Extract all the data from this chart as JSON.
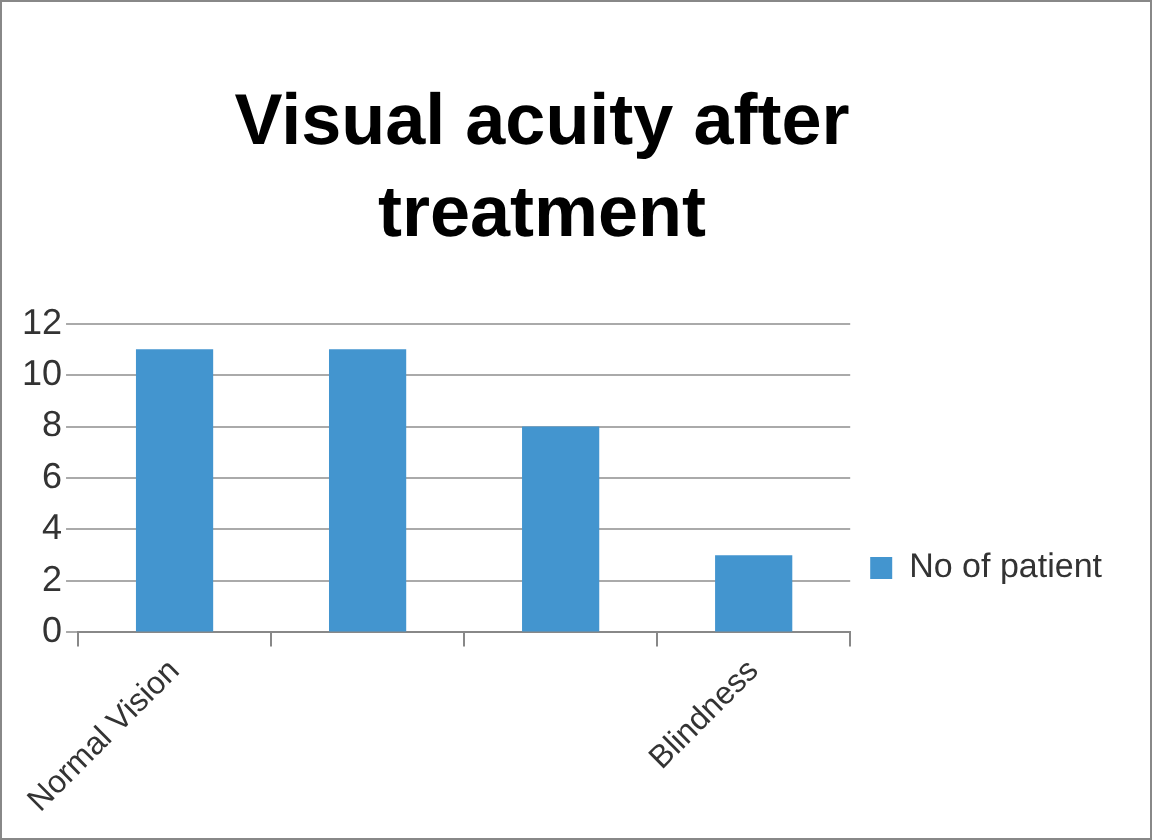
{
  "chart_data": {
    "type": "bar",
    "title": "Visual acuity after treatment",
    "categories": [
      "Normal Vision",
      null,
      null,
      "Blindness"
    ],
    "series": [
      {
        "name": "No of patient",
        "color": "#4395cf",
        "values": [
          11,
          11,
          8,
          3
        ]
      }
    ],
    "ylim": [
      0,
      12
    ],
    "yticks": [
      0,
      2,
      4,
      6,
      8,
      10,
      12
    ],
    "grid": "y",
    "legend": "right"
  }
}
